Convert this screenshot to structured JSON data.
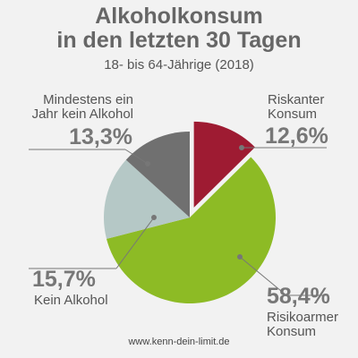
{
  "chart_data": {
    "type": "pie",
    "title_lines": [
      "Alkoholkonsum",
      "in den letzten 30 Tagen"
    ],
    "subtitle": "18- bis 64-Jährige (2018)",
    "slices": [
      {
        "label_lines": [
          "Riskanter",
          "Konsum"
        ],
        "value": 12.6,
        "value_label": "12,6%",
        "color": "#9e1b32",
        "exploded": true
      },
      {
        "label_lines": [
          "Risikoarmer",
          "Konsum"
        ],
        "value": 58.4,
        "value_label": "58,4%",
        "color": "#8dbb25",
        "exploded": false
      },
      {
        "label_lines": [
          "Kein Alkohol"
        ],
        "value": 15.7,
        "value_label": "15,7%",
        "color": "#b5c8c6",
        "exploded": false
      },
      {
        "label_lines": [
          "Mindestens ein",
          "Jahr kein Alkohol"
        ],
        "value": 13.3,
        "value_label": "13,3%",
        "color": "#707070",
        "exploded": false
      }
    ]
  },
  "footer": "www.kenn-dein-limit.de"
}
